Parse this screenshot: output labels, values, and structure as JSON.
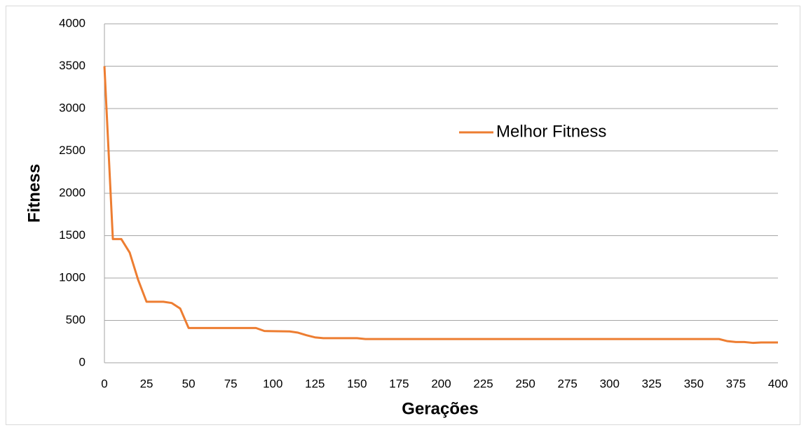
{
  "chart_data": {
    "type": "line",
    "x_label": "Gerações",
    "y_label": "Fitness",
    "series": [
      {
        "name": "Melhor Fitness",
        "color": "#ed7d31",
        "x": [
          0,
          5,
          10,
          15,
          20,
          25,
          35,
          40,
          45,
          50,
          90,
          95,
          110,
          115,
          120,
          125,
          130,
          150,
          155,
          365,
          370,
          375,
          380,
          385,
          390,
          400
        ],
        "values": [
          3500,
          1460,
          1460,
          1300,
          980,
          720,
          720,
          705,
          640,
          410,
          410,
          375,
          370,
          355,
          325,
          300,
          290,
          290,
          280,
          280,
          255,
          245,
          245,
          235,
          240,
          240
        ]
      }
    ],
    "xlim": [
      0,
      400
    ],
    "xticks": [
      0,
      25,
      50,
      75,
      100,
      125,
      150,
      175,
      200,
      225,
      250,
      275,
      300,
      325,
      350,
      375,
      400
    ],
    "ylim": [
      0,
      4000
    ],
    "yticks": [
      0,
      500,
      1000,
      1500,
      2000,
      2500,
      3000,
      3500,
      4000
    ],
    "grid": true
  }
}
